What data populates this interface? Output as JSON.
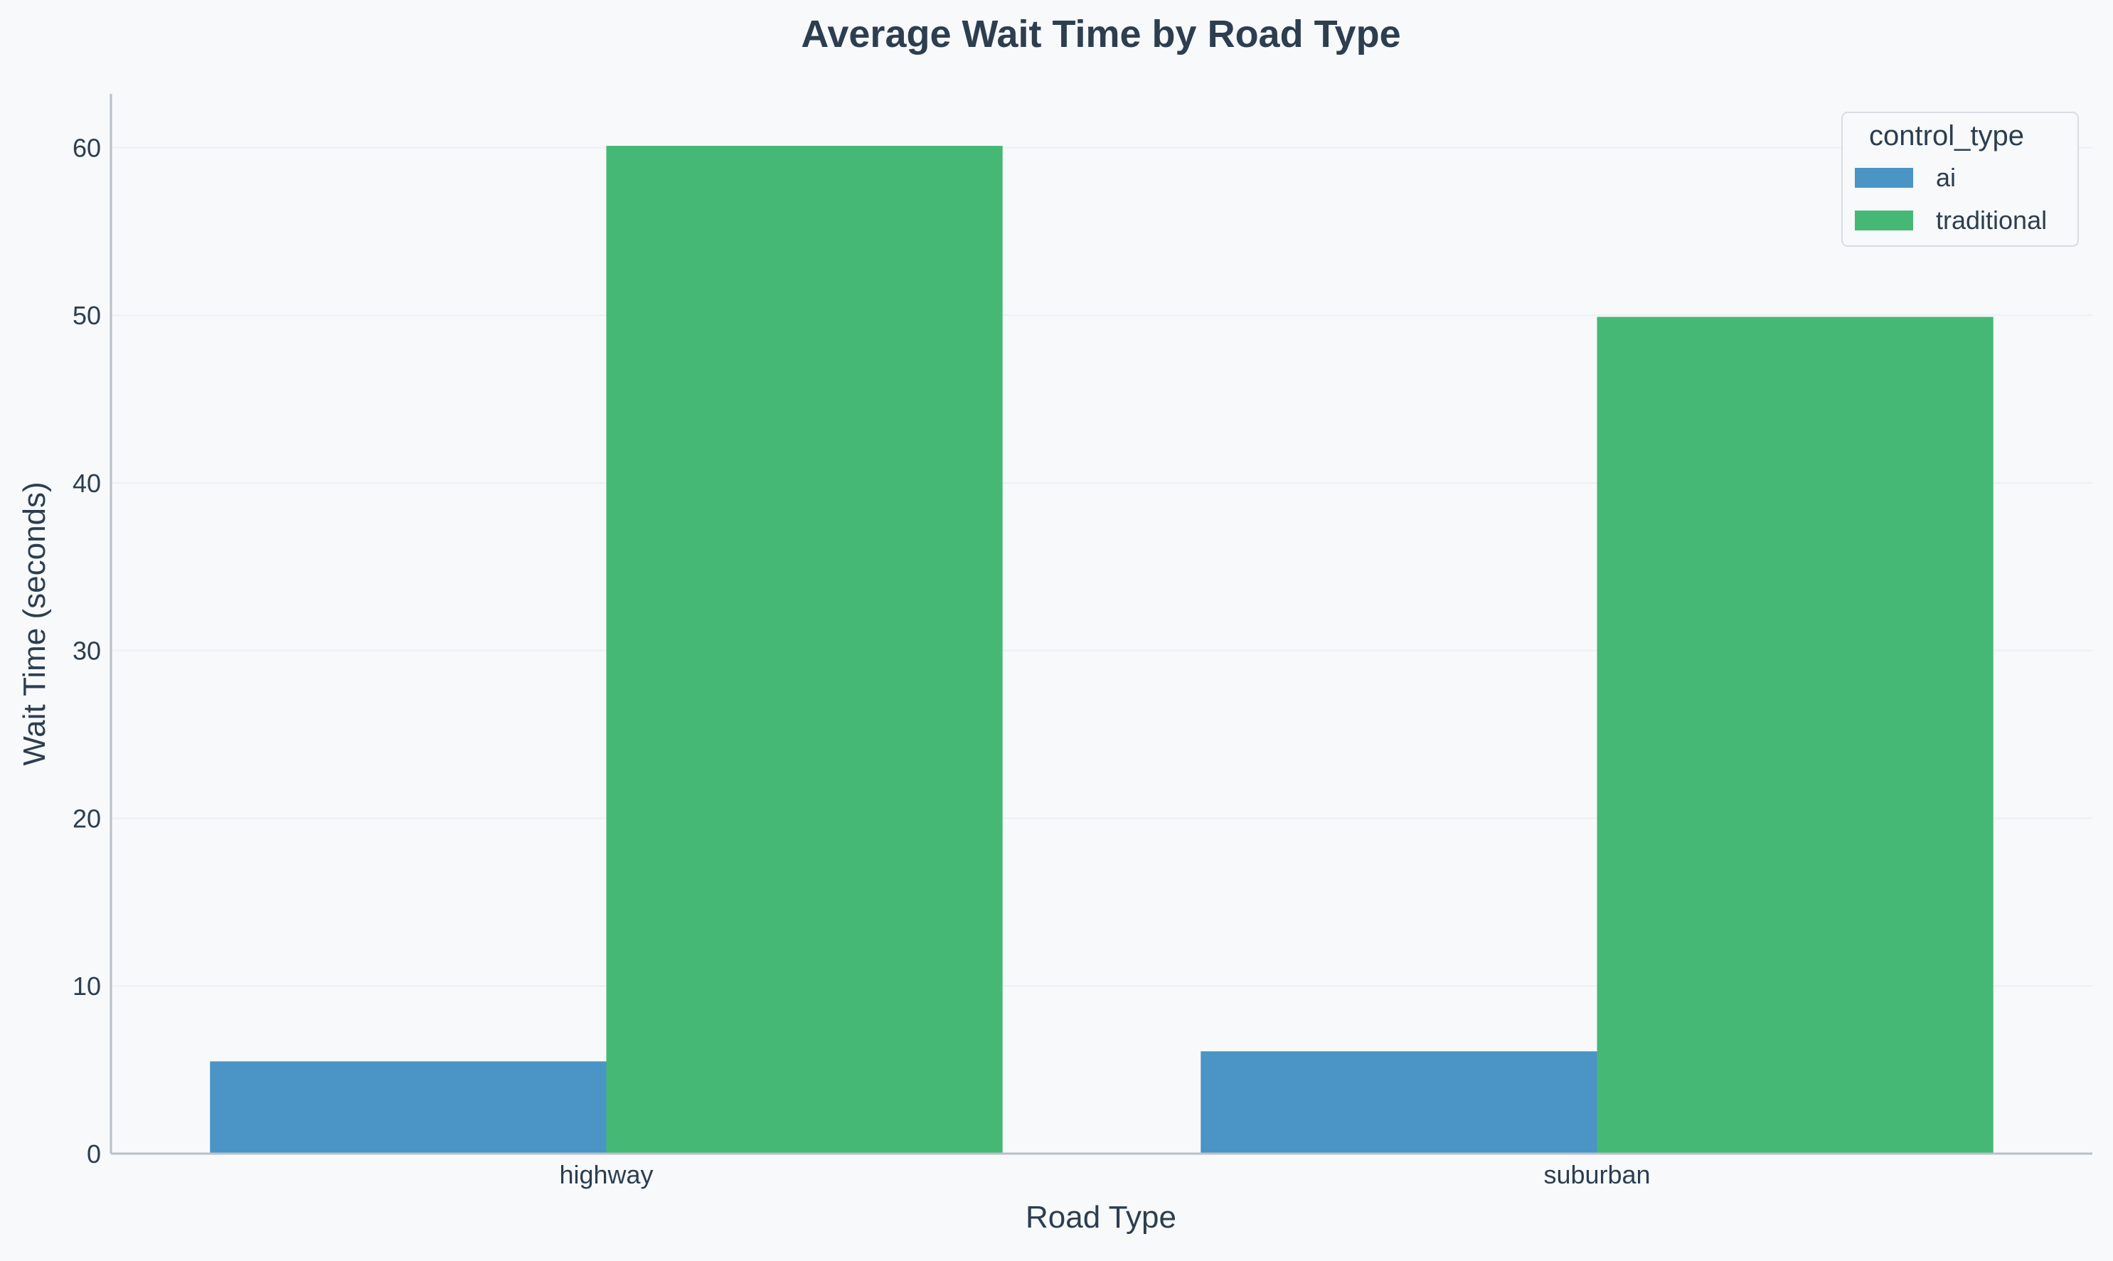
{
  "chart_data": {
    "type": "bar",
    "title": "Average Wait Time by Road Type",
    "xlabel": "Road Type",
    "ylabel": "Wait Time (seconds)",
    "categories": [
      "highway",
      "suburban"
    ],
    "series": [
      {
        "name": "ai",
        "values": [
          5.5,
          6.1
        ],
        "color": "#4a94c6"
      },
      {
        "name": "traditional",
        "values": [
          60.1,
          49.9
        ],
        "color": "#45b875"
      }
    ],
    "ylim": [
      0,
      63.2
    ],
    "yticks": [
      0,
      10,
      20,
      30,
      40,
      50,
      60
    ],
    "legend": {
      "title": "control_type",
      "position": "top-right"
    },
    "grid": true
  },
  "colors": {
    "background": "#f7f9fb",
    "text": "#2c3e50",
    "axis": "#b9c0c7",
    "grid": "#eef1f4"
  }
}
